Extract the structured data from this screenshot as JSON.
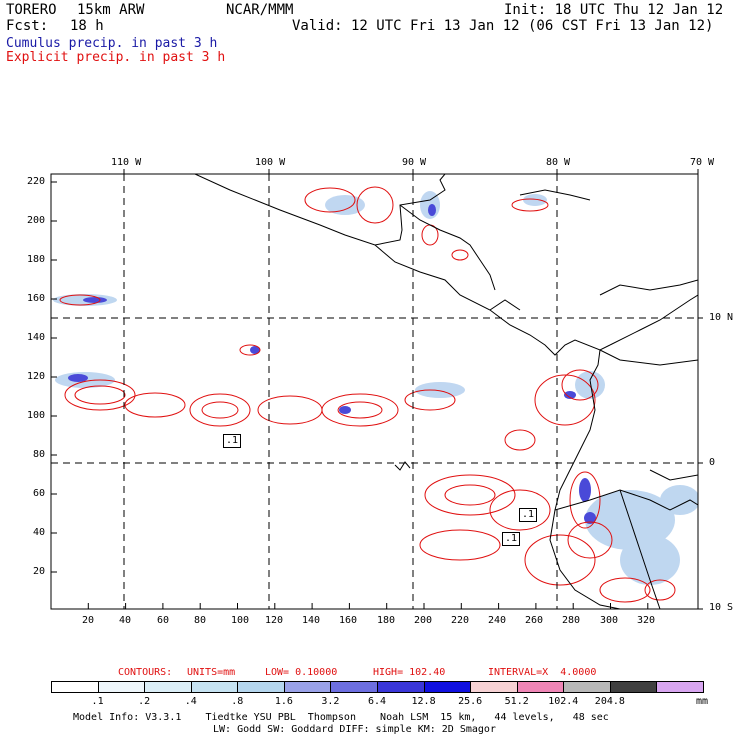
{
  "header": {
    "model": "TORERO",
    "resolution": "15km ARW",
    "org": "NCAR/MMM",
    "init": "Init: 18 UTC Thu 12 Jan 12",
    "fcst_label": "Fcst:",
    "fcst_value": "18 h",
    "valid": "Valid: 12 UTC Fri 13 Jan 12 (06 CST Fri 13 Jan 12)",
    "legend_cumulus": "Cumulus precip. in past 3 h",
    "legend_explicit": "Explicit precip. in past 3 h"
  },
  "colors": {
    "cumulus": "#1a1aa6",
    "explicit": "#e01010",
    "coast": "#000000"
  },
  "map": {
    "top_lon_labels": [
      "110 W",
      "100 W",
      "90 W",
      "80 W",
      "70 W"
    ],
    "right_lat_labels": [
      "10 N",
      "0",
      "10 S"
    ],
    "y_ticks": [
      "220",
      "200",
      "180",
      "160",
      "140",
      "120",
      "100",
      "80",
      "60",
      "40",
      "20"
    ],
    "x_ticks": [
      "20",
      "40",
      "60",
      "80",
      "100",
      "120",
      "140",
      "160",
      "180",
      "200",
      "220",
      "240",
      "260",
      "280",
      "300",
      "320"
    ],
    "box_labels": [
      ".1",
      ".1",
      ".1"
    ]
  },
  "contours": {
    "title": "CONTOURS:",
    "units": "UNITS=mm",
    "low": "LOW= 0.10000",
    "high": "HIGH= 102.40",
    "interval": "INTERVAL=X  4.0000"
  },
  "colorbar": {
    "levels": [
      ".1",
      ".2",
      ".4",
      ".8",
      "1.6",
      "3.2",
      "6.4",
      "12.8",
      "25.6",
      "51.2",
      "102.4",
      "204.8"
    ],
    "unit": "mm",
    "colors": [
      "#ffffff",
      "#eef6fb",
      "#dbeef7",
      "#c6e3f2",
      "#b5d6ee",
      "#9aa2e8",
      "#6d6fe0",
      "#3a36d8",
      "#1010e0",
      "#f6d2d4",
      "#ef86b6",
      "#b8b8b8",
      "#404040",
      "#d8a6f0"
    ]
  },
  "footer": {
    "line1": "Model Info: V3.3.1    Tiedtke YSU PBL  Thompson    Noah LSM  15 km,   44 levels,   48 sec",
    "line2": "LW: Godd SW: Goddard DIFF: simple KM: 2D Smagor"
  }
}
